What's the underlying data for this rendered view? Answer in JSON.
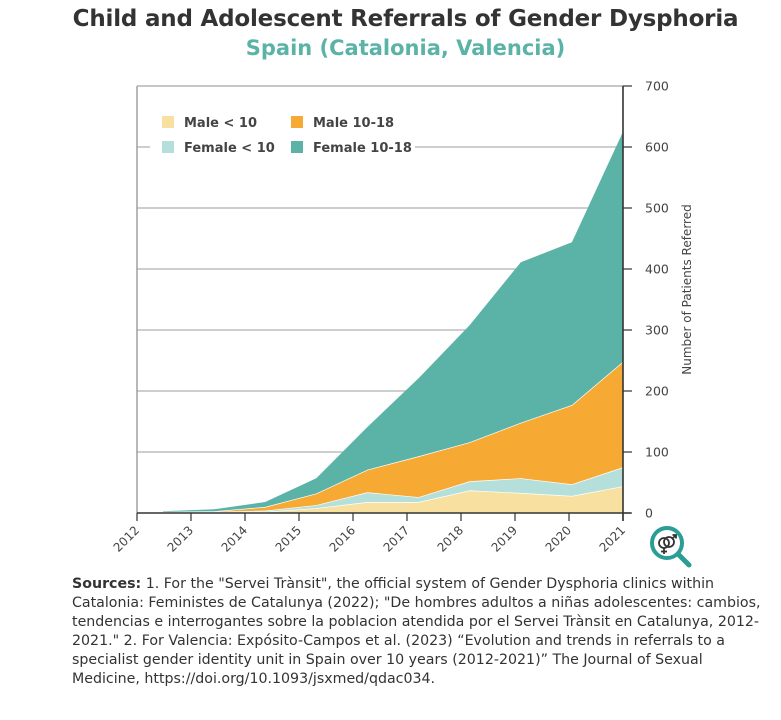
{
  "header": {
    "title": "Child and Adolescent Referrals of Gender Dysphoria",
    "subtitle": "Spain (Catalonia, Valencia)"
  },
  "sources": {
    "label": "Sources:",
    "text": " 1. For the \"Servei Trànsit\", the official system of Gender Dysphoria clinics within Catalonia: Feministes de Catalunya (2022); \"De hombres adultos a niñas adolescentes: cambios, tendencias e interrogantes sobre la poblacion atendida por el Servei Trànsit en Catalunya, 2012-2021.\" 2. For Valencia: Expósito-Campos et al. (2023) “Evolution and trends in referrals to a specialist gender identity unit in Spain over 10 years (2012-2021)” The Journal of Sexual Medicine, https://doi.org/10.1093/jsxmed/qdac034."
  },
  "logo": {
    "icon": "gender-magnifier-icon",
    "color": "#2a9d95"
  },
  "chart_data": {
    "type": "area",
    "stacked": true,
    "title": "Child and Adolescent Referrals of Gender Dysphoria",
    "subtitle": "Spain (Catalonia, Valencia)",
    "xlabel": "",
    "ylabel": "Number of Patients Referred",
    "x": [
      2012,
      2013,
      2014,
      2015,
      2016,
      2017,
      2018,
      2019,
      2020,
      2021
    ],
    "x_ticks": [
      "2012",
      "2013",
      "2014",
      "2015",
      "2016",
      "2017",
      "2018",
      "2019",
      "2020",
      "2021"
    ],
    "ylim": [
      0,
      700
    ],
    "y_ticks": [
      0,
      100,
      200,
      300,
      400,
      500,
      600,
      700
    ],
    "y_axis_side": "right",
    "grid": true,
    "legend_position": "top-left",
    "series": [
      {
        "name": "Male < 10",
        "color": "#f8e1a0",
        "values": [
          1,
          1,
          2,
          8,
          18,
          18,
          37,
          33,
          28,
          44
        ]
      },
      {
        "name": "Female < 10",
        "color": "#b5dfda",
        "values": [
          0.5,
          1,
          2,
          5,
          16,
          8,
          15,
          24,
          19,
          31
        ]
      },
      {
        "name": "Male 10-18",
        "color": "#f6a933",
        "values": [
          0.5,
          1,
          6,
          19,
          37,
          67,
          64,
          91,
          130,
          173
        ]
      },
      {
        "name": "Female 10-18",
        "color": "#5ab3a6",
        "values": [
          1,
          3,
          8,
          25,
          70,
          128,
          192,
          263,
          267,
          377
        ]
      }
    ],
    "legend_order": [
      0,
      2,
      1,
      3
    ]
  }
}
